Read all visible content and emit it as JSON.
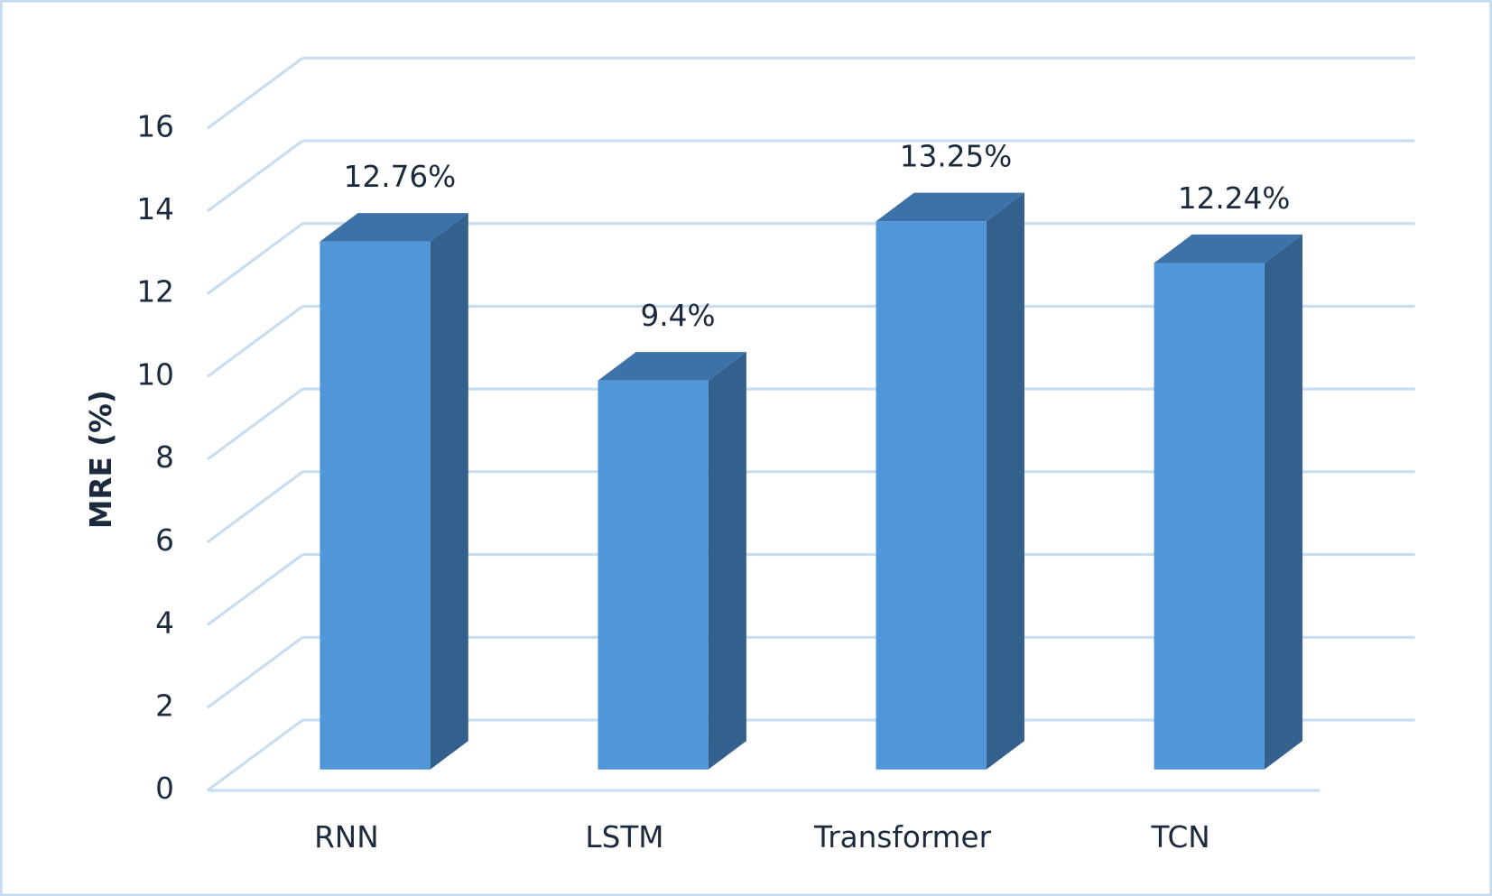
{
  "chart_data": {
    "type": "bar3d",
    "y_label": "MRE (%)",
    "categories": [
      "RNN",
      "LSTM",
      "Transformer",
      "TCN"
    ],
    "values": [
      12.76,
      9.4,
      13.25,
      12.24
    ],
    "value_labels": [
      "12.76%",
      "9.4%",
      "13.25%",
      "12.24%"
    ],
    "color": "#5096d9",
    "ylim": [
      0,
      16
    ],
    "yticks": [
      0,
      2,
      4,
      6,
      8,
      10,
      12,
      14,
      16
    ],
    "grid": true
  }
}
